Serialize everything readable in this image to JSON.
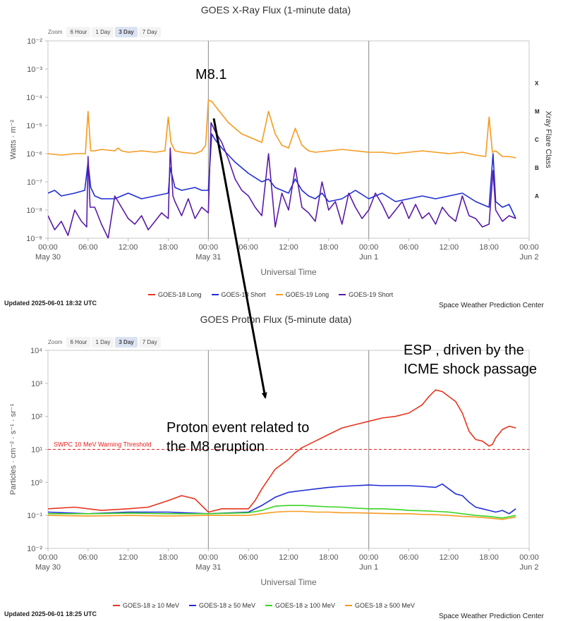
{
  "panels": {
    "xray": {
      "title": "GOES X-Ray Flux (1-minute data)",
      "updated": "Updated 2025-06-01 18:32 UTC"
    },
    "proton": {
      "title": "GOES Proton Flux (5-minute data)",
      "updated": "Updated 2025-06-01 18:25 UTC"
    }
  },
  "zoom": {
    "label": "Zoom",
    "options": [
      "6 Hour",
      "1 Day",
      "3 Day",
      "7 Day"
    ],
    "selected": "3 Day"
  },
  "credit": "Space Weather Prediction Center",
  "annotations": {
    "flare": "M8.1",
    "esp_line1": "ESP , driven by the",
    "esp_line2": "ICME shock passage",
    "proton_line1": "Proton event related to",
    "proton_line2": "the  M8 eruption"
  },
  "colors": {
    "goes18_long": "#e8341c",
    "goes18_short": "#1f2ed6",
    "goes19_long": "#f59a1f",
    "goes19_short": "#5a1aa8",
    "p10": "#e8341c",
    "p50": "#1f2ed6",
    "p100": "#39d424",
    "p500": "#f59a1f",
    "threshold": "#e82020"
  },
  "chart_data": [
    {
      "type": "line",
      "title": "GOES X-Ray Flux (1-minute data)",
      "xlabel": "Universal Time",
      "ylabel": "Watts · m⁻²",
      "y2label": "Xray Flare Class",
      "yscale": "log",
      "ylim": [
        1e-09,
        0.01
      ],
      "xlim_hours": [
        0,
        72
      ],
      "x_ticks": [
        "00:00",
        "06:00",
        "12:00",
        "18:00",
        "00:00",
        "06:00",
        "12:00",
        "18:00",
        "00:00",
        "06:00",
        "12:00",
        "18:00",
        "00:00"
      ],
      "x_date_labels": {
        "0": "May 30",
        "24": "May 31",
        "48": "Jun 1",
        "72": "Jun 2"
      },
      "y_tick_exponents": [
        -2,
        -3,
        -4,
        -5,
        -6,
        -7,
        -8,
        -9
      ],
      "flare_classes": [
        {
          "label": "X",
          "exp": -3.5
        },
        {
          "label": "M",
          "exp": -4.5
        },
        {
          "label": "C",
          "exp": -5.5
        },
        {
          "label": "B",
          "exp": -6.5
        },
        {
          "label": "A",
          "exp": -7.5
        }
      ],
      "day_lines_hours": [
        24,
        48
      ],
      "grid": false,
      "legend_position": "bottom",
      "series": [
        {
          "name": "GOES-18 Long",
          "color_key": "goes18_long",
          "x": [],
          "y": []
        },
        {
          "name": "GOES-18 Short",
          "color_key": "goes18_short",
          "x": [
            0,
            1,
            2,
            4,
            5.5,
            6,
            6.4,
            7,
            8,
            10,
            11,
            12,
            14,
            16,
            18,
            18.3,
            19,
            20,
            22,
            23,
            24,
            24.5,
            25,
            26,
            28,
            30,
            32,
            33,
            34,
            36,
            37,
            38,
            39,
            40,
            41,
            42,
            44,
            46,
            48,
            50,
            52,
            54,
            56,
            58,
            60,
            62,
            64,
            66,
            66.6,
            67,
            68,
            69,
            70
          ],
          "y": [
            -7.4,
            -7.3,
            -7.5,
            -7.4,
            -7.3,
            -6.3,
            -7.2,
            -7.5,
            -7.6,
            -7.6,
            -7.5,
            -7.4,
            -7.6,
            -7.5,
            -7.4,
            -6.5,
            -7.2,
            -7.3,
            -7.2,
            -7.3,
            -7.3,
            -5.3,
            -5.5,
            -5.8,
            -6.3,
            -6.7,
            -7.0,
            -6.9,
            -7.2,
            -7.4,
            -6.9,
            -7.3,
            -7.5,
            -7.6,
            -7.4,
            -7.7,
            -7.6,
            -7.3,
            -7.6,
            -7.4,
            -7.7,
            -7.6,
            -7.5,
            -7.6,
            -7.5,
            -7.4,
            -7.7,
            -7.9,
            -6.0,
            -7.7,
            -7.9,
            -7.8,
            -8.3
          ]
        },
        {
          "name": "GOES-19 Long",
          "color_key": "goes19_long",
          "x": [
            0,
            2,
            4,
            5.6,
            6,
            6.4,
            7,
            8,
            10,
            10.5,
            11,
            12,
            14,
            16,
            17.5,
            18,
            18.4,
            19,
            20,
            22,
            23,
            23.6,
            24,
            24.5,
            25,
            26,
            27,
            28,
            29,
            30,
            32,
            33,
            34,
            35,
            36,
            37,
            38,
            39,
            40,
            42,
            44,
            46,
            48,
            50,
            52,
            54,
            56,
            58,
            60,
            62,
            64,
            65.5,
            66,
            66.5,
            67,
            68,
            69,
            70
          ],
          "y": [
            -6.0,
            -6.05,
            -6.0,
            -6.0,
            -4.5,
            -5.9,
            -5.9,
            -5.85,
            -5.9,
            -5.8,
            -5.9,
            -5.95,
            -5.9,
            -5.95,
            -5.9,
            -4.7,
            -5.6,
            -5.9,
            -5.95,
            -6.0,
            -5.9,
            -5.7,
            -4.1,
            -4.15,
            -4.3,
            -4.6,
            -4.9,
            -5.1,
            -5.3,
            -5.4,
            -5.6,
            -4.5,
            -5.3,
            -5.7,
            -5.8,
            -5.1,
            -5.7,
            -5.9,
            -5.95,
            -5.9,
            -5.85,
            -5.9,
            -5.95,
            -5.95,
            -6.0,
            -5.95,
            -5.9,
            -5.95,
            -6.0,
            -5.95,
            -6.05,
            -6.1,
            -4.7,
            -5.95,
            -5.9,
            -6.1,
            -6.1,
            -6.15
          ]
        },
        {
          "name": "GOES-19 Short",
          "color_key": "goes19_short",
          "x": [
            0,
            1,
            2,
            3,
            4,
            5,
            5.8,
            6,
            6.3,
            7,
            8,
            9,
            10,
            11,
            12,
            13,
            14,
            15,
            16,
            17,
            18,
            18.3,
            18.7,
            19,
            20,
            21,
            22,
            23,
            24,
            24.4,
            25,
            26,
            27,
            28,
            29,
            30,
            31,
            32,
            33,
            34,
            35,
            36,
            37,
            38,
            39,
            40,
            41,
            42,
            43,
            44,
            45,
            46,
            47,
            48,
            49,
            50,
            51,
            52,
            53,
            54,
            55,
            56,
            57,
            58,
            59,
            60,
            61,
            62,
            63,
            64,
            65,
            66,
            66.6,
            67,
            68,
            69,
            70
          ],
          "y": [
            -8.2,
            -8.7,
            -8.4,
            -8.9,
            -8.0,
            -8.4,
            -8.6,
            -6.1,
            -7.9,
            -7.9,
            -8.5,
            -9.0,
            -7.5,
            -7.9,
            -8.3,
            -8.5,
            -8.2,
            -8.7,
            -8.4,
            -8.1,
            -8.3,
            -5.8,
            -7.5,
            -7.7,
            -8.2,
            -7.6,
            -8.3,
            -7.9,
            -8.1,
            -4.9,
            -5.2,
            -5.6,
            -6.2,
            -6.9,
            -7.3,
            -7.5,
            -7.9,
            -8.2,
            -6.0,
            -8.6,
            -7.4,
            -8.0,
            -6.5,
            -7.9,
            -8.1,
            -8.4,
            -7.0,
            -8.0,
            -7.7,
            -8.5,
            -7.4,
            -7.9,
            -8.3,
            -8.0,
            -7.4,
            -7.8,
            -8.3,
            -8.0,
            -7.7,
            -8.3,
            -7.8,
            -8.3,
            -8.1,
            -8.5,
            -7.9,
            -8.2,
            -8.4,
            -7.5,
            -8.2,
            -8.3,
            -8.6,
            -8.5,
            -6.6,
            -8.0,
            -8.4,
            -8.2,
            -8.3
          ]
        }
      ]
    },
    {
      "type": "line",
      "title": "GOES Proton Flux (5-minute data)",
      "xlabel": "Universal Time",
      "ylabel": "Particles · cm⁻² · s⁻¹ · sr⁻¹",
      "yscale": "log",
      "ylim": [
        0.01,
        10000.0
      ],
      "xlim_hours": [
        0,
        72
      ],
      "x_ticks": [
        "00:00",
        "06:00",
        "12:00",
        "18:00",
        "00:00",
        "06:00",
        "12:00",
        "18:00",
        "00:00",
        "06:00",
        "12:00",
        "18:00",
        "00:00"
      ],
      "x_date_labels": {
        "0": "May 30",
        "24": "May 31",
        "48": "Jun 1",
        "72": "Jun 2"
      },
      "y_tick_exponents": [
        4,
        3,
        2,
        1,
        0,
        -1,
        -2
      ],
      "threshold": {
        "label": "SWPC 10 MeV Warning Threshold",
        "value": 10
      },
      "day_lines_hours": [
        24,
        48
      ],
      "grid": false,
      "legend_position": "bottom",
      "series": [
        {
          "name": "GOES-18 ≥ 10 MeV",
          "color_key": "p10",
          "x": [
            0,
            4,
            8,
            12,
            15,
            18,
            20,
            21,
            22,
            24,
            26,
            30,
            31,
            32,
            33,
            34,
            36,
            37,
            38,
            40,
            42,
            44,
            46,
            48,
            50,
            52,
            54,
            56,
            57,
            58,
            59,
            60,
            61,
            62,
            63,
            64,
            65,
            66,
            66.5,
            67,
            68,
            69,
            70
          ],
          "y": [
            -0.8,
            -0.75,
            -0.85,
            -0.8,
            -0.75,
            -0.55,
            -0.4,
            -0.45,
            -0.5,
            -0.9,
            -0.8,
            -0.8,
            -0.55,
            -0.2,
            0.1,
            0.4,
            0.7,
            0.9,
            1.05,
            1.25,
            1.45,
            1.65,
            1.75,
            1.85,
            1.95,
            2.0,
            2.1,
            2.35,
            2.6,
            2.8,
            2.75,
            2.6,
            2.45,
            2.1,
            1.55,
            1.3,
            1.25,
            1.1,
            1.15,
            1.35,
            1.6,
            1.7,
            1.65
          ]
        },
        {
          "name": "GOES-18 ≥ 50 MeV",
          "color_key": "p50",
          "x": [
            0,
            6,
            12,
            18,
            24,
            30,
            32,
            34,
            36,
            38,
            40,
            42,
            44,
            46,
            48,
            50,
            52,
            54,
            56,
            58,
            59,
            60,
            61,
            62,
            63,
            64,
            65,
            66,
            67,
            68,
            69,
            70
          ],
          "y": [
            -0.9,
            -0.95,
            -0.9,
            -0.9,
            -0.95,
            -0.9,
            -0.7,
            -0.45,
            -0.3,
            -0.25,
            -0.2,
            -0.15,
            -0.12,
            -0.1,
            -0.08,
            -0.1,
            -0.1,
            -0.1,
            -0.12,
            -0.15,
            -0.05,
            -0.2,
            -0.35,
            -0.4,
            -0.6,
            -0.75,
            -0.8,
            -0.85,
            -0.9,
            -0.85,
            -0.95,
            -0.8
          ]
        },
        {
          "name": "GOES-18 ≥ 100 MeV",
          "color_key": "p100",
          "x": [
            0,
            6,
            12,
            18,
            24,
            30,
            32,
            34,
            36,
            38,
            40,
            42,
            44,
            46,
            48,
            50,
            52,
            54,
            56,
            58,
            60,
            62,
            64,
            66,
            68,
            70
          ],
          "y": [
            -0.95,
            -0.95,
            -0.93,
            -0.95,
            -0.95,
            -0.92,
            -0.85,
            -0.72,
            -0.7,
            -0.7,
            -0.72,
            -0.74,
            -0.75,
            -0.78,
            -0.8,
            -0.8,
            -0.82,
            -0.85,
            -0.86,
            -0.88,
            -0.9,
            -0.95,
            -1.0,
            -1.03,
            -1.08,
            -1.0
          ]
        },
        {
          "name": "GOES-18 ≥ 500 MeV",
          "color_key": "p500",
          "x": [
            0,
            6,
            12,
            18,
            24,
            30,
            32,
            34,
            36,
            38,
            40,
            42,
            44,
            46,
            48,
            50,
            52,
            54,
            56,
            58,
            60,
            62,
            64,
            66,
            68,
            70
          ],
          "y": [
            -1.0,
            -1.02,
            -1.0,
            -1.02,
            -1.0,
            -1.0,
            -0.95,
            -0.9,
            -0.88,
            -0.88,
            -0.9,
            -0.9,
            -0.92,
            -0.92,
            -0.93,
            -0.94,
            -0.95,
            -0.95,
            -0.97,
            -0.98,
            -1.0,
            -1.03,
            -1.05,
            -1.08,
            -1.12,
            -1.05
          ]
        }
      ]
    }
  ]
}
